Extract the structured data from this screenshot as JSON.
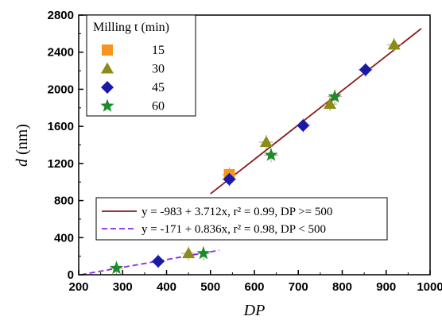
{
  "chart_data": {
    "type": "scatter",
    "xlabel": "DP",
    "ylabel_var": "d",
    "ylabel_unit": "(nm)",
    "xlim": [
      200,
      1000
    ],
    "ylim": [
      0,
      2800
    ],
    "x_ticks": [
      200,
      300,
      400,
      500,
      600,
      700,
      800,
      900,
      1000
    ],
    "y_ticks": [
      0,
      400,
      800,
      1200,
      1600,
      2000,
      2400,
      2800
    ],
    "grid": false,
    "legend_title": "Milling t (min)",
    "legend_position": "top-left",
    "series": [
      {
        "name": "15",
        "marker": "square",
        "color": "#f7941d",
        "points": [
          [
            543,
            1080
          ]
        ]
      },
      {
        "name": "30",
        "marker": "triangle",
        "color": "#8c8c1a",
        "points": [
          [
            450,
            230
          ],
          [
            627,
            1430
          ],
          [
            772,
            1840
          ],
          [
            918,
            2480
          ]
        ]
      },
      {
        "name": "45",
        "marker": "diamond",
        "color": "#1a1aa6",
        "points": [
          [
            381,
            145
          ],
          [
            543,
            1030
          ],
          [
            711,
            1610
          ],
          [
            853,
            2210
          ]
        ]
      },
      {
        "name": "60",
        "marker": "star",
        "color": "#1a8c2a",
        "points": [
          [
            286,
            70
          ],
          [
            484,
            230
          ],
          [
            638,
            1290
          ],
          [
            783,
            1920
          ]
        ]
      }
    ],
    "fits": [
      {
        "label": "y = -983 + 3.712x, r² = 0.99, DP >= 500",
        "intercept": -983,
        "slope": 3.712,
        "x_range": [
          500,
          980
        ],
        "color": "#8b1a1a",
        "dash": false
      },
      {
        "label": "y = -171 + 0.836x, r² = 0.98,   DP < 500",
        "intercept": -171,
        "slope": 0.836,
        "x_range": [
          205,
          520
        ],
        "color": "#8a2be2",
        "dash": true
      }
    ]
  }
}
